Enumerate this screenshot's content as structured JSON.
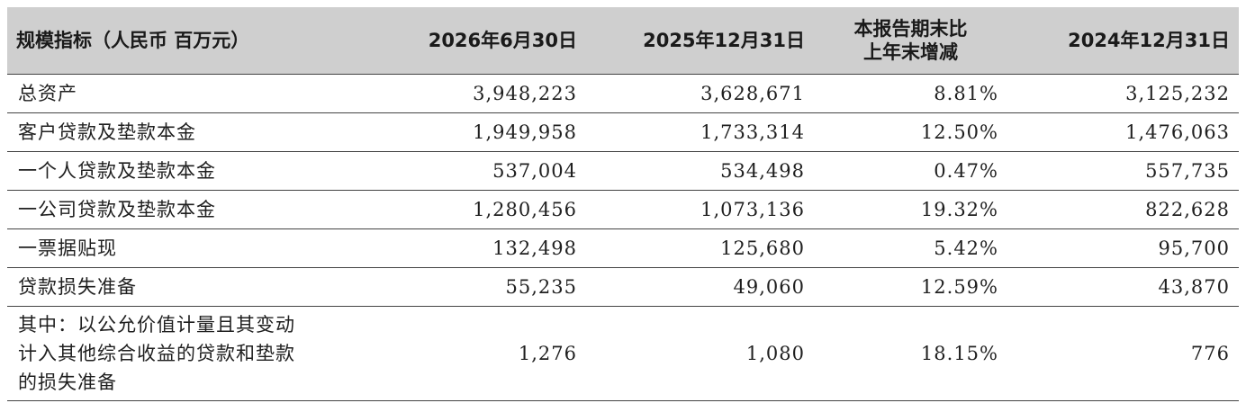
{
  "header": {
    "col0": "规模指标（人民币 百万元）",
    "col1": "2026年6月30日",
    "col2": "2025年12月31日",
    "col3_line1": "本报告期末比",
    "col3_line2": "上年末增减",
    "col4": "2024年12月31日"
  },
  "rows": [
    {
      "label": "总资产",
      "v1": "3,948,223",
      "v2": "3,628,671",
      "change": "8.81%",
      "v3": "3,125,232"
    },
    {
      "label": "客户贷款及垫款本金",
      "v1": "1,949,958",
      "v2": "1,733,314",
      "change": "12.50%",
      "v3": "1,476,063"
    },
    {
      "label": "一个人贷款及垫款本金",
      "v1": "537,004",
      "v2": "534,498",
      "change": "0.47%",
      "v3": "557,735"
    },
    {
      "label": "一公司贷款及垫款本金",
      "v1": "1,280,456",
      "v2": "1,073,136",
      "change": "19.32%",
      "v3": "822,628"
    },
    {
      "label": "一票据贴现",
      "v1": "132,498",
      "v2": "125,680",
      "change": "5.42%",
      "v3": "95,700"
    },
    {
      "label": "贷款损失准备",
      "v1": "55,235",
      "v2": "49,060",
      "change": "12.59%",
      "v3": "43,870"
    }
  ],
  "last_row": {
    "label_line1": "其中：以公允价值计量且其变动",
    "label_line2": "计入其他综合收益的贷款和垫款",
    "label_line3": "的损失准备",
    "v1": "1,276",
    "v2": "1,080",
    "change": "18.15%",
    "v3": "776"
  }
}
